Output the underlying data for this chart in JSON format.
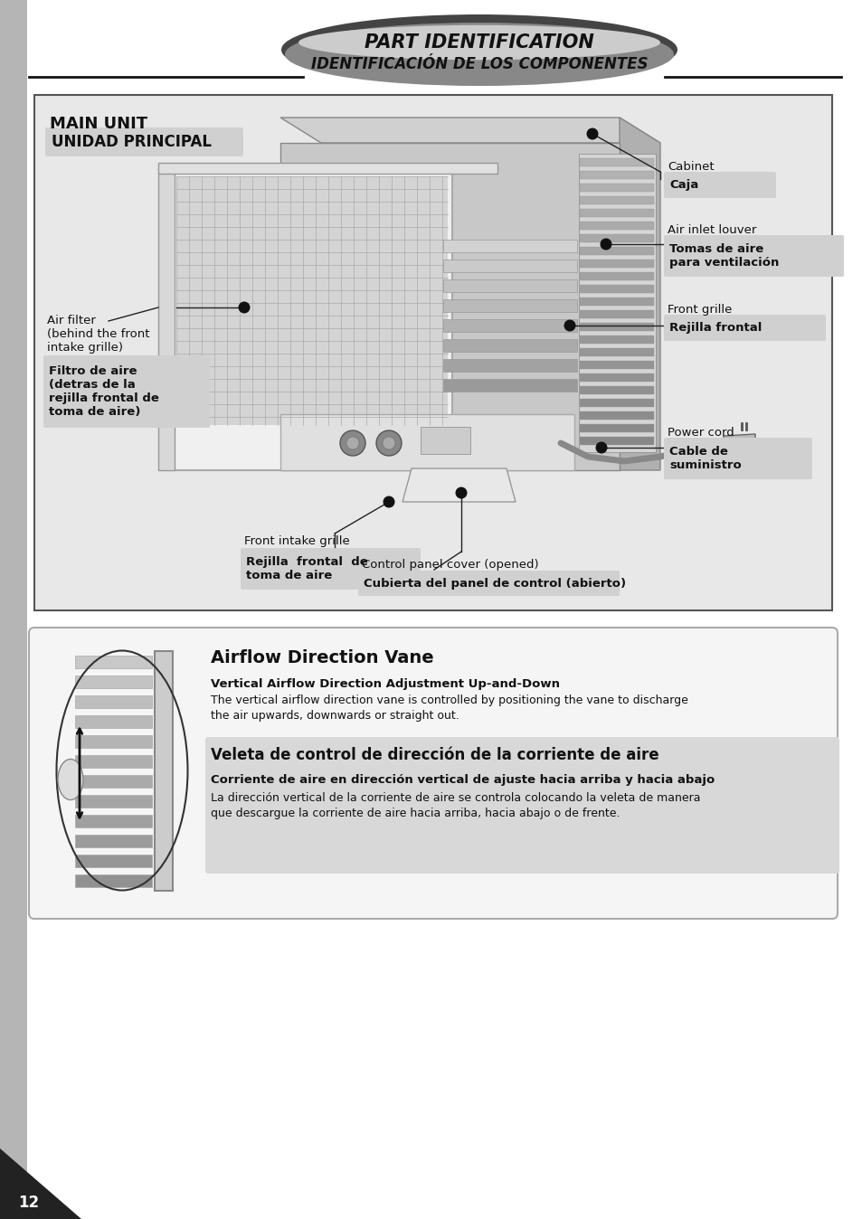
{
  "bg_color": "#ffffff",
  "sidebar_color": "#b5b5b5",
  "title_line1": "PART IDENTIFICATION",
  "title_line2": "IDENTIFICACIÓN DE LOS COMPONENTES",
  "main_unit_en": "MAIN UNIT",
  "main_unit_es": "UNIDAD PRINCIPAL",
  "airflow_title": "Airflow Direction Vane",
  "airflow_sub_en": "Vertical Airflow Direction Adjustment Up-and-Down",
  "airflow_text_en": "The vertical airflow direction vane is controlled by positioning the vane to discharge\nthe air upwards, downwards or straight out.",
  "airflow_title_es": "Veleta de control de dirección de la corriente de aire",
  "airflow_sub_es": "Corriente de aire en dirección vertical de ajuste hacia arriba y hacia abajo",
  "airflow_text_es": "La dirección vertical de la corriente de aire se controla colocando la veleta de manera\nque descargue la corriente de aire hacia arriba, hacia abajo o de frente.",
  "page_num": "12",
  "diagram_bg": "#e8e8e8",
  "label_box_bg": "#d0d0d0",
  "airflow_box_bg": "#f5f5f5",
  "airflow_es_box_bg": "#d8d8d8"
}
